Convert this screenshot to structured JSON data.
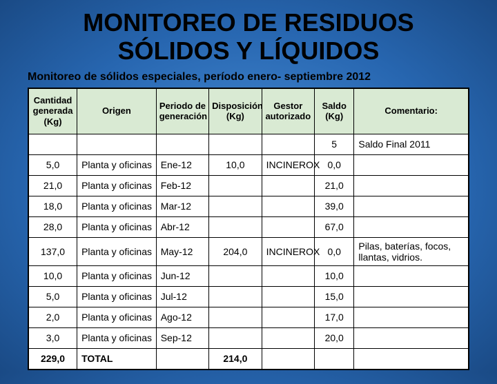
{
  "title_line1": "MONITOREO DE RESIDUOS",
  "title_line2": "SÓLIDOS Y LÍQUIDOS",
  "subtitle": "Monitoreo de sólidos especiales, período enero- septiembre 2012",
  "table": {
    "background_color": "#ffffff",
    "header_bg": "#d9ead3",
    "border_color": "#000000",
    "font_family": "Arial",
    "header_fontsize": 13,
    "cell_fontsize": 14,
    "columns": [
      {
        "key": "cantidad",
        "label": "Cantidad generada (Kg)",
        "width": "11%",
        "align": "center"
      },
      {
        "key": "origen",
        "label": "Origen",
        "width": "18%",
        "align": "left"
      },
      {
        "key": "periodo",
        "label": "Periodo de generación",
        "width": "12%",
        "align": "left"
      },
      {
        "key": "disposicion",
        "label": "Disposición (Kg)",
        "width": "12%",
        "align": "center"
      },
      {
        "key": "gestor",
        "label": "Gestor autorizado",
        "width": "12%",
        "align": "left"
      },
      {
        "key": "saldo",
        "label": "Saldo (Kg)",
        "width": "9%",
        "align": "center"
      },
      {
        "key": "comentario",
        "label": "Comentario:",
        "width": "26%",
        "align": "left"
      }
    ],
    "rows": [
      {
        "cantidad": "",
        "origen": "",
        "periodo": "",
        "disposicion": "",
        "gestor": "",
        "saldo": "5",
        "comentario": "Saldo Final 2011"
      },
      {
        "cantidad": "5,0",
        "origen": "Planta y oficinas",
        "periodo": "Ene-12",
        "disposicion": "10,0",
        "gestor": "INCINEROX",
        "saldo": "0,0",
        "comentario": ""
      },
      {
        "cantidad": "21,0",
        "origen": "Planta y oficinas",
        "periodo": "Feb-12",
        "disposicion": "",
        "gestor": "",
        "saldo": "21,0",
        "comentario": ""
      },
      {
        "cantidad": "18,0",
        "origen": "Planta y oficinas",
        "periodo": "Mar-12",
        "disposicion": "",
        "gestor": "",
        "saldo": "39,0",
        "comentario": ""
      },
      {
        "cantidad": "28,0",
        "origen": "Planta y oficinas",
        "periodo": "Abr-12",
        "disposicion": "",
        "gestor": "",
        "saldo": "67,0",
        "comentario": ""
      },
      {
        "cantidad": "137,0",
        "origen": "Planta y oficinas",
        "periodo": "May-12",
        "disposicion": "204,0",
        "gestor": "INCINEROX",
        "saldo": "0,0",
        "comentario": "Pilas, baterías, focos, llantas, vidrios."
      },
      {
        "cantidad": "10,0",
        "origen": "Planta y oficinas",
        "periodo": "Jun-12",
        "disposicion": "",
        "gestor": "",
        "saldo": "10,0",
        "comentario": ""
      },
      {
        "cantidad": "5,0",
        "origen": "Planta y oficinas",
        "periodo": "Jul-12",
        "disposicion": "",
        "gestor": "",
        "saldo": "15,0",
        "comentario": ""
      },
      {
        "cantidad": "2,0",
        "origen": "Planta y oficinas",
        "periodo": "Ago-12",
        "disposicion": "",
        "gestor": "",
        "saldo": "17,0",
        "comentario": ""
      },
      {
        "cantidad": "3,0",
        "origen": "Planta y oficinas",
        "periodo": "Sep-12",
        "disposicion": "",
        "gestor": "",
        "saldo": "20,0",
        "comentario": ""
      }
    ],
    "total_row": {
      "cantidad": "229,0",
      "origen": "TOTAL",
      "periodo": "",
      "disposicion": "214,0",
      "gestor": "",
      "saldo": "",
      "comentario": ""
    }
  }
}
